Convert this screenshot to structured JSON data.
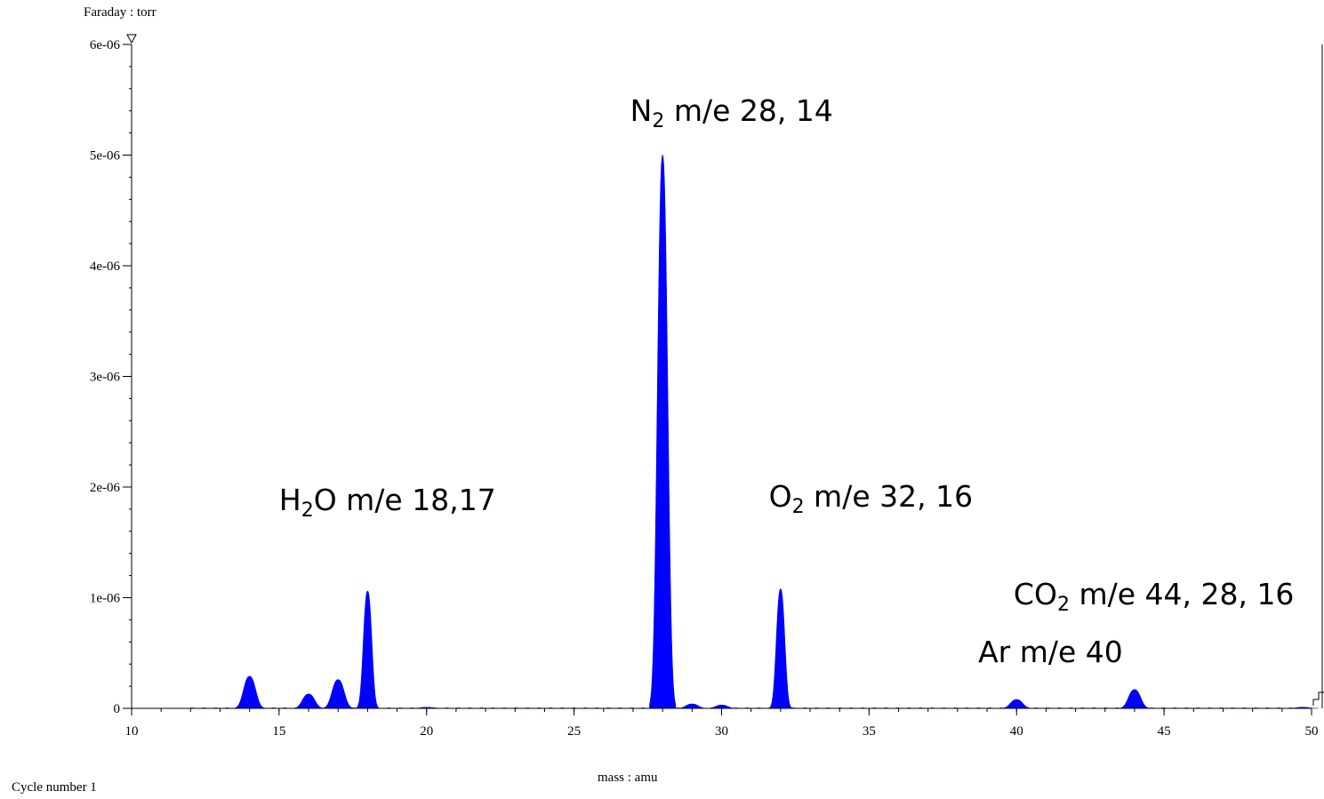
{
  "chart_data": {
    "type": "area",
    "ylabel": "Faraday : torr",
    "xlabel": "mass : amu",
    "footer": "Cycle number 1",
    "xlim": [
      10,
      50
    ],
    "ylim": [
      0,
      6e-06
    ],
    "x_ticks": [
      {
        "value": 10,
        "label": "10"
      },
      {
        "value": 15,
        "label": "15"
      },
      {
        "value": 20,
        "label": "20"
      },
      {
        "value": 25,
        "label": "25"
      },
      {
        "value": 30,
        "label": "30"
      },
      {
        "value": 35,
        "label": "35"
      },
      {
        "value": 40,
        "label": "40"
      },
      {
        "value": 45,
        "label": "45"
      },
      {
        "value": 50,
        "label": "50"
      }
    ],
    "y_ticks": [
      {
        "value": 0,
        "label": "0"
      },
      {
        "value": 1e-06,
        "label": "1e-06"
      },
      {
        "value": 2e-06,
        "label": "2e-06"
      },
      {
        "value": 3e-06,
        "label": "3e-06"
      },
      {
        "value": 4e-06,
        "label": "4e-06"
      },
      {
        "value": 5e-06,
        "label": "5e-06"
      },
      {
        "value": 6e-06,
        "label": "6e-06"
      }
    ],
    "fill_color": "#0000ff",
    "peaks": [
      {
        "mass": 14.0,
        "height": 2.9e-07
      },
      {
        "mass": 16.0,
        "height": 1.3e-07
      },
      {
        "mass": 17.0,
        "height": 2.6e-07
      },
      {
        "mass": 18.0,
        "height": 1.06e-06
      },
      {
        "mass": 20.0,
        "height": 1e-08
      },
      {
        "mass": 28.0,
        "height": 5e-06
      },
      {
        "mass": 29.0,
        "height": 4e-08
      },
      {
        "mass": 30.0,
        "height": 3e-08
      },
      {
        "mass": 32.0,
        "height": 1.08e-06
      },
      {
        "mass": 40.0,
        "height": 8e-08
      },
      {
        "mass": 44.0,
        "height": 1.7e-07
      },
      {
        "mass": 49.7,
        "height": 1e-08
      }
    ],
    "annotations": [
      {
        "formula": "N",
        "sub": "2",
        "rest": " m/e 28, 14",
        "x": 26.9,
        "y": 5.4e-06
      },
      {
        "formula": "H",
        "sub": "2",
        "rest": "O m/e 18,17",
        "x": 15.0,
        "y": 1.88e-06
      },
      {
        "formula": "O",
        "sub": "2",
        "rest": " m/e 32, 16",
        "x": 31.6,
        "y": 1.91e-06
      },
      {
        "formula": "CO",
        "sub": "2",
        "rest": " m/e 44, 28, 16",
        "x": 39.9,
        "y": 1.03e-06
      },
      {
        "formula": "Ar m/e 40",
        "sub": "",
        "rest": "",
        "x": 38.7,
        "y": 5.1e-07
      }
    ]
  }
}
